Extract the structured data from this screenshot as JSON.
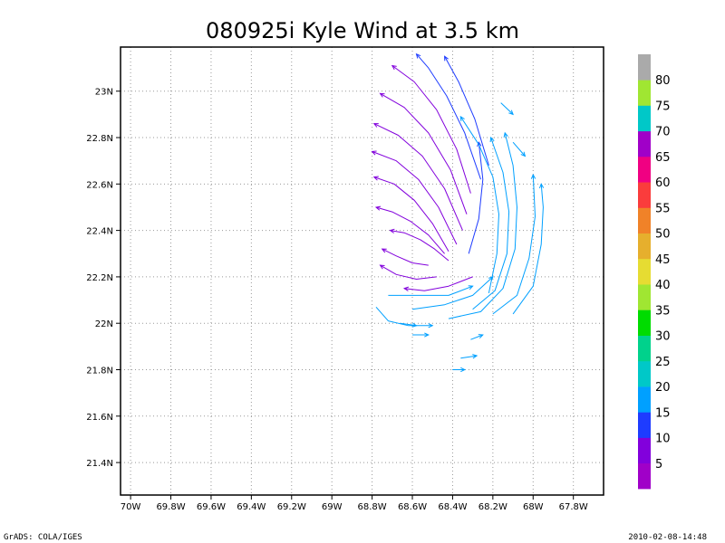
{
  "chart_data": {
    "type": "vector-streamline",
    "title": "080925i Kyle Wind at 3.5 km",
    "xlabel": "",
    "ylabel": "",
    "xlim": [
      -70.05,
      -67.65
    ],
    "ylim": [
      21.26,
      23.19
    ],
    "grid": true,
    "x_ticks": [
      {
        "value": -70.0,
        "label": "70W"
      },
      {
        "value": -69.8,
        "label": "69.8W"
      },
      {
        "value": -69.6,
        "label": "69.6W"
      },
      {
        "value": -69.4,
        "label": "69.4W"
      },
      {
        "value": -69.2,
        "label": "69.2W"
      },
      {
        "value": -69.0,
        "label": "69W"
      },
      {
        "value": -68.8,
        "label": "68.8W"
      },
      {
        "value": -68.6,
        "label": "68.6W"
      },
      {
        "value": -68.4,
        "label": "68.4W"
      },
      {
        "value": -68.2,
        "label": "68.2W"
      },
      {
        "value": -68.0,
        "label": "68W"
      },
      {
        "value": -67.8,
        "label": "67.8W"
      }
    ],
    "y_ticks": [
      {
        "value": 21.4,
        "label": "21.4N"
      },
      {
        "value": 21.6,
        "label": "21.6N"
      },
      {
        "value": 21.8,
        "label": "21.8N"
      },
      {
        "value": 22.0,
        "label": "22N"
      },
      {
        "value": 22.2,
        "label": "22.2N"
      },
      {
        "value": 22.4,
        "label": "22.4N"
      },
      {
        "value": 22.6,
        "label": "22.6N"
      },
      {
        "value": 22.8,
        "label": "22.8N"
      },
      {
        "value": 23.0,
        "label": "23N"
      }
    ],
    "circulation_center": {
      "lon": -68.56,
      "lat": 22.36
    },
    "colorbar": {
      "orientation": "vertical",
      "placement": "right",
      "boundaries": [
        5,
        10,
        15,
        20,
        25,
        30,
        35,
        40,
        45,
        50,
        55,
        60,
        65,
        70,
        75,
        80
      ],
      "colors": [
        "#a000c8",
        "#8200dc",
        "#1e3cff",
        "#00a0ff",
        "#00c8c8",
        "#00d28c",
        "#00dc00",
        "#a0e632",
        "#e6dc32",
        "#e6af2d",
        "#f08228",
        "#fa3c3c",
        "#f00082",
        "#a000c8",
        "#00c8c8",
        "#a0e632",
        "#aaaaaa"
      ]
    },
    "streamlines": [
      {
        "speed": 5,
        "points": [
          [
            -68.42,
            22.27
          ],
          [
            -68.49,
            22.32
          ],
          [
            -68.56,
            22.36
          ],
          [
            -68.64,
            22.39
          ],
          [
            -68.71,
            22.4
          ]
        ]
      },
      {
        "speed": 5,
        "points": [
          [
            -68.44,
            22.3
          ],
          [
            -68.52,
            22.38
          ],
          [
            -68.61,
            22.44
          ],
          [
            -68.7,
            22.48
          ],
          [
            -68.78,
            22.5
          ]
        ]
      },
      {
        "speed": 5,
        "points": [
          [
            -68.42,
            22.31
          ],
          [
            -68.5,
            22.43
          ],
          [
            -68.59,
            22.53
          ],
          [
            -68.69,
            22.6
          ],
          [
            -68.79,
            22.63
          ]
        ]
      },
      {
        "speed": 5,
        "points": [
          [
            -68.38,
            22.34
          ],
          [
            -68.47,
            22.5
          ],
          [
            -68.57,
            22.62
          ],
          [
            -68.68,
            22.7
          ],
          [
            -68.8,
            22.74
          ]
        ]
      },
      {
        "speed": 5,
        "points": [
          [
            -68.35,
            22.4
          ],
          [
            -68.44,
            22.58
          ],
          [
            -68.55,
            22.72
          ],
          [
            -68.67,
            22.81
          ],
          [
            -68.79,
            22.86
          ]
        ]
      },
      {
        "speed": 5,
        "points": [
          [
            -68.33,
            22.47
          ],
          [
            -68.41,
            22.66
          ],
          [
            -68.52,
            22.82
          ],
          [
            -68.64,
            22.93
          ],
          [
            -68.76,
            22.99
          ]
        ]
      },
      {
        "speed": 5,
        "points": [
          [
            -68.31,
            22.56
          ],
          [
            -68.38,
            22.75
          ],
          [
            -68.48,
            22.92
          ],
          [
            -68.59,
            23.04
          ],
          [
            -68.7,
            23.11
          ]
        ]
      },
      {
        "speed": 5,
        "points": [
          [
            -68.52,
            22.25
          ],
          [
            -68.6,
            22.26
          ],
          [
            -68.68,
            22.29
          ],
          [
            -68.75,
            22.32
          ]
        ]
      },
      {
        "speed": 5,
        "points": [
          [
            -68.48,
            22.2
          ],
          [
            -68.58,
            22.19
          ],
          [
            -68.68,
            22.21
          ],
          [
            -68.76,
            22.25
          ]
        ]
      },
      {
        "speed": 5,
        "points": [
          [
            -68.3,
            22.2
          ],
          [
            -68.42,
            22.16
          ],
          [
            -68.54,
            22.14
          ],
          [
            -68.64,
            22.15
          ]
        ]
      },
      {
        "speed": 10,
        "points": [
          [
            -68.26,
            22.62
          ],
          [
            -68.34,
            22.82
          ],
          [
            -68.43,
            22.98
          ],
          [
            -68.52,
            23.1
          ],
          [
            -68.58,
            23.16
          ]
        ]
      },
      {
        "speed": 10,
        "points": [
          [
            -68.22,
            22.68
          ],
          [
            -68.29,
            22.88
          ],
          [
            -68.37,
            23.04
          ],
          [
            -68.44,
            23.15
          ]
        ]
      },
      {
        "speed": 10,
        "points": [
          [
            -68.32,
            22.3
          ],
          [
            -68.27,
            22.45
          ],
          [
            -68.25,
            22.62
          ],
          [
            -68.27,
            22.78
          ]
        ]
      },
      {
        "speed": 15,
        "points": [
          [
            -68.22,
            22.13
          ],
          [
            -68.18,
            22.3
          ],
          [
            -68.17,
            22.47
          ],
          [
            -68.2,
            22.63
          ],
          [
            -68.27,
            22.77
          ],
          [
            -68.36,
            22.89
          ]
        ]
      },
      {
        "speed": 15,
        "points": [
          [
            -68.3,
            22.06
          ],
          [
            -68.19,
            22.14
          ],
          [
            -68.13,
            22.3
          ],
          [
            -68.12,
            22.48
          ],
          [
            -68.15,
            22.65
          ],
          [
            -68.21,
            22.8
          ]
        ]
      },
      {
        "speed": 15,
        "points": [
          [
            -68.42,
            22.02
          ],
          [
            -68.26,
            22.05
          ],
          [
            -68.15,
            22.15
          ],
          [
            -68.09,
            22.32
          ],
          [
            -68.08,
            22.5
          ],
          [
            -68.1,
            22.68
          ],
          [
            -68.14,
            22.82
          ]
        ]
      },
      {
        "speed": 15,
        "points": [
          [
            -68.6,
            22.06
          ],
          [
            -68.44,
            22.08
          ],
          [
            -68.3,
            22.12
          ],
          [
            -68.2,
            22.2
          ]
        ]
      },
      {
        "speed": 15,
        "points": [
          [
            -68.72,
            22.12
          ],
          [
            -68.58,
            22.12
          ],
          [
            -68.42,
            22.12
          ],
          [
            -68.3,
            22.16
          ]
        ]
      },
      {
        "speed": 15,
        "points": [
          [
            -68.78,
            22.07
          ],
          [
            -68.72,
            22.01
          ],
          [
            -68.62,
            21.99
          ],
          [
            -68.5,
            21.99
          ]
        ]
      },
      {
        "speed": 15,
        "points": [
          [
            -68.2,
            22.04
          ],
          [
            -68.08,
            22.12
          ],
          [
            -68.02,
            22.28
          ],
          [
            -67.99,
            22.46
          ],
          [
            -68.0,
            22.64
          ]
        ]
      },
      {
        "speed": 15,
        "points": [
          [
            -68.1,
            22.04
          ],
          [
            -68.0,
            22.16
          ],
          [
            -67.96,
            22.34
          ],
          [
            -67.95,
            22.5
          ],
          [
            -67.96,
            22.6
          ]
        ]
      },
      {
        "speed": 15,
        "points": [
          [
            -68.31,
            21.93
          ],
          [
            -68.25,
            21.95
          ]
        ]
      },
      {
        "speed": 15,
        "points": [
          [
            -68.36,
            21.85
          ],
          [
            -68.28,
            21.86
          ]
        ]
      },
      {
        "speed": 15,
        "points": [
          [
            -68.4,
            21.8
          ],
          [
            -68.34,
            21.8
          ]
        ]
      },
      {
        "speed": 15,
        "points": [
          [
            -68.6,
            21.95
          ],
          [
            -68.52,
            21.95
          ]
        ]
      },
      {
        "speed": 15,
        "points": [
          [
            -68.66,
            22.0
          ],
          [
            -68.58,
            21.99
          ]
        ]
      },
      {
        "speed": 15,
        "points": [
          [
            -68.16,
            22.95
          ],
          [
            -68.1,
            22.9
          ]
        ]
      },
      {
        "speed": 15,
        "points": [
          [
            -68.1,
            22.78
          ],
          [
            -68.04,
            22.72
          ]
        ]
      }
    ]
  },
  "footer": {
    "left": "GrADS: COLA/IGES",
    "right": "2010-02-08-14:48"
  }
}
